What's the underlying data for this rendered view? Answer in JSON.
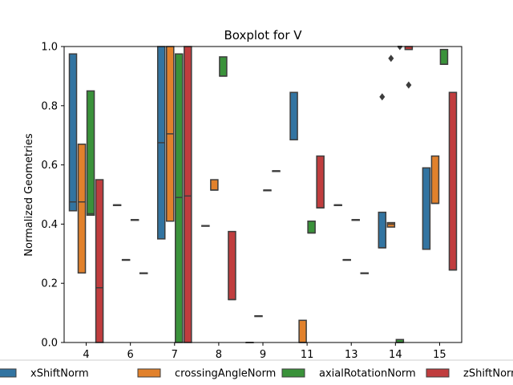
{
  "chart_data": {
    "type": "boxplot",
    "title": "Boxplot for V",
    "xlabel": "",
    "ylabel": "Normalized Geometries",
    "ylim": [
      0.0,
      1.0
    ],
    "yticks": [
      "0.0",
      "0.2",
      "0.4",
      "0.6",
      "0.8",
      "1.0"
    ],
    "categories": [
      "4",
      "6",
      "7",
      "8",
      "9",
      "11",
      "13",
      "14",
      "15"
    ],
    "legend_position": "bottom",
    "series": [
      {
        "name": "xShiftNorm",
        "color": "#3274a1",
        "boxes": [
          {
            "q1": 0.445,
            "median": 0.475,
            "q3": 0.975
          },
          {
            "q1": 0.465,
            "median": 0.465,
            "q3": 0.465
          },
          {
            "q1": 0.35,
            "median": 0.675,
            "q3": 1.0
          },
          {
            "q1": 0.395,
            "median": 0.395,
            "q3": 0.395
          },
          {
            "q1": 0.0,
            "median": 0.0,
            "q3": 0.0
          },
          {
            "q1": 0.685,
            "median": 0.685,
            "q3": 0.845
          },
          {
            "q1": 0.465,
            "median": 0.465,
            "q3": 0.465
          },
          {
            "q1": 0.32,
            "median": 0.32,
            "q3": 0.44,
            "outliers": [
              0.83
            ]
          },
          {
            "q1": 0.315,
            "median": 0.315,
            "q3": 0.59
          }
        ]
      },
      {
        "name": "crossingAngleNorm",
        "color": "#e1812c",
        "boxes": [
          {
            "q1": 0.235,
            "median": 0.475,
            "q3": 0.67
          },
          {
            "q1": 0.28,
            "median": 0.28,
            "q3": 0.28
          },
          {
            "q1": 0.41,
            "median": 0.705,
            "q3": 1.0
          },
          {
            "q1": 0.515,
            "median": 0.515,
            "q3": 0.55
          },
          {
            "q1": 0.09,
            "median": 0.09,
            "q3": 0.09
          },
          {
            "q1": 0.0,
            "median": 0.0,
            "q3": 0.075
          },
          {
            "q1": 0.28,
            "median": 0.28,
            "q3": 0.28
          },
          {
            "q1": 0.39,
            "median": 0.4,
            "q3": 0.405,
            "outliers": [
              0.96
            ]
          },
          {
            "q1": 0.47,
            "median": 0.47,
            "q3": 0.63
          }
        ]
      },
      {
        "name": "axialRotationNorm",
        "color": "#3a923a",
        "boxes": [
          {
            "q1": 0.43,
            "median": 0.435,
            "q3": 0.85
          },
          {
            "q1": 0.415,
            "median": 0.415,
            "q3": 0.415
          },
          {
            "q1": 0.0,
            "median": 0.49,
            "q3": 0.975
          },
          {
            "q1": 0.9,
            "median": 0.9,
            "q3": 0.965
          },
          {
            "q1": 0.515,
            "median": 0.515,
            "q3": 0.515
          },
          {
            "q1": 0.37,
            "median": 0.37,
            "q3": 0.41
          },
          {
            "q1": 0.415,
            "median": 0.415,
            "q3": 0.415
          },
          {
            "q1": 0.0,
            "median": 0.0,
            "q3": 0.01,
            "outliers": [
              1.0
            ]
          },
          {
            "q1": 0.94,
            "median": 0.94,
            "q3": 0.99
          }
        ]
      },
      {
        "name": "zShiftNorm",
        "color": "#c03d3e",
        "boxes": [
          {
            "q1": 0.0,
            "median": 0.185,
            "q3": 0.55
          },
          {
            "q1": 0.235,
            "median": 0.235,
            "q3": 0.235
          },
          {
            "q1": 0.0,
            "median": 0.495,
            "q3": 1.0
          },
          {
            "q1": 0.145,
            "median": 0.145,
            "q3": 0.375
          },
          {
            "q1": 0.58,
            "median": 0.58,
            "q3": 0.58
          },
          {
            "q1": 0.455,
            "median": 0.455,
            "q3": 0.63
          },
          {
            "q1": 0.235,
            "median": 0.235,
            "q3": 0.235
          },
          {
            "q1": 0.99,
            "median": 0.99,
            "q3": 1.0,
            "outliers": [
              0.87
            ]
          },
          {
            "q1": 0.245,
            "median": 0.245,
            "q3": 0.845
          }
        ]
      }
    ]
  }
}
